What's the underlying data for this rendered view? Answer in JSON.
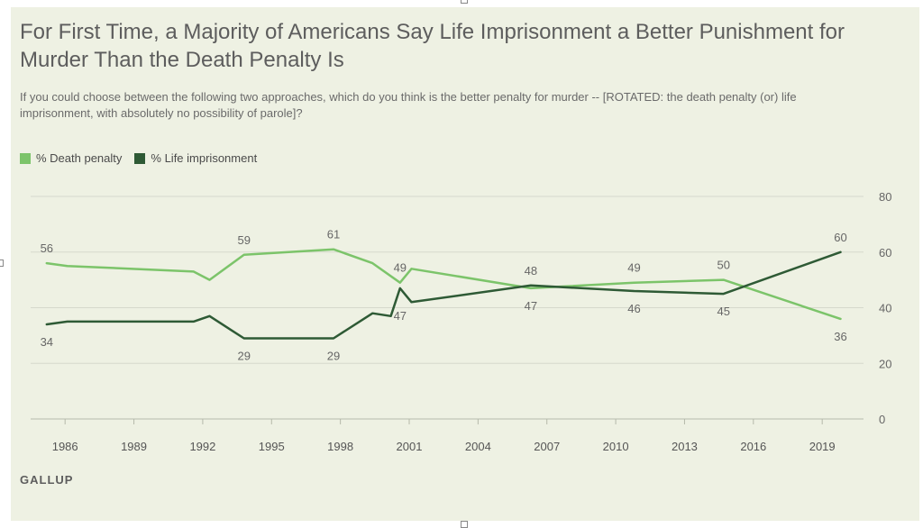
{
  "header": {
    "title": "For First Time, a Majority of Americans Say Life Imprisonment a Better Punishment for Murder Than the Death Penalty Is",
    "subtitle": "If you could choose between the following two approaches, which do you think is the better penalty for murder -- [ROTATED: the death penalty (or) life imprisonment, with absolutely no possibility of parole]?"
  },
  "footer": {
    "brand": "GALLUP"
  },
  "colors": {
    "panel": "#eef1e3",
    "death_penalty": "#7cc46a",
    "life_imprisonment": "#2e5a35"
  },
  "chart_data": {
    "type": "line",
    "title": "",
    "xlabel": "",
    "ylabel": "",
    "xlim": [
      1984.5,
      2020.8
    ],
    "ylim": [
      0,
      80
    ],
    "xticks": [
      "1986",
      "1989",
      "1992",
      "1995",
      "1998",
      "2001",
      "2004",
      "2007",
      "2010",
      "2013",
      "2016",
      "2019"
    ],
    "yticks": [
      "0",
      "20",
      "40",
      "60",
      "80"
    ],
    "grid": true,
    "legend_position": "top-left",
    "series": [
      {
        "name": "% Death penalty",
        "color": "#7cc46a",
        "points": [
          {
            "x": 1985.2,
            "y": 56
          },
          {
            "x": 1986.1,
            "y": 55
          },
          {
            "x": 1991.6,
            "y": 53
          },
          {
            "x": 1992.3,
            "y": 50
          },
          {
            "x": 1993.8,
            "y": 59
          },
          {
            "x": 1997.7,
            "y": 61
          },
          {
            "x": 1999.4,
            "y": 56
          },
          {
            "x": 2000.6,
            "y": 49
          },
          {
            "x": 2001.1,
            "y": 54
          },
          {
            "x": 2006.3,
            "y": 47
          },
          {
            "x": 2010.8,
            "y": 49
          },
          {
            "x": 2014.7,
            "y": 50
          },
          {
            "x": 2019.8,
            "y": 36
          }
        ]
      },
      {
        "name": "% Life imprisonment",
        "color": "#2e5a35",
        "points": [
          {
            "x": 1985.2,
            "y": 34
          },
          {
            "x": 1986.1,
            "y": 35
          },
          {
            "x": 1991.6,
            "y": 35
          },
          {
            "x": 1992.3,
            "y": 37
          },
          {
            "x": 1993.8,
            "y": 29
          },
          {
            "x": 1997.7,
            "y": 29
          },
          {
            "x": 1999.4,
            "y": 38
          },
          {
            "x": 2000.2,
            "y": 37
          },
          {
            "x": 2000.6,
            "y": 47
          },
          {
            "x": 2001.1,
            "y": 42
          },
          {
            "x": 2006.3,
            "y": 48
          },
          {
            "x": 2010.8,
            "y": 46
          },
          {
            "x": 2014.7,
            "y": 45
          },
          {
            "x": 2019.8,
            "y": 60
          }
        ]
      }
    ],
    "data_labels": [
      {
        "text": "56",
        "x": 1985.2,
        "y": 56,
        "pos": "above"
      },
      {
        "text": "34",
        "x": 1985.2,
        "y": 34,
        "pos": "below"
      },
      {
        "text": "59",
        "x": 1993.8,
        "y": 59,
        "pos": "above"
      },
      {
        "text": "29",
        "x": 1993.8,
        "y": 29,
        "pos": "below"
      },
      {
        "text": "61",
        "x": 1997.7,
        "y": 61,
        "pos": "above"
      },
      {
        "text": "29",
        "x": 1997.7,
        "y": 29,
        "pos": "below"
      },
      {
        "text": "49",
        "x": 2000.6,
        "y": 49,
        "pos": "above"
      },
      {
        "text": "47",
        "x": 2000.6,
        "y": 47,
        "pos": "below-far"
      },
      {
        "text": "48",
        "x": 2006.3,
        "y": 48,
        "pos": "above"
      },
      {
        "text": "47",
        "x": 2006.3,
        "y": 47,
        "pos": "below"
      },
      {
        "text": "49",
        "x": 2010.8,
        "y": 49,
        "pos": "above"
      },
      {
        "text": "46",
        "x": 2010.8,
        "y": 46,
        "pos": "below"
      },
      {
        "text": "50",
        "x": 2014.7,
        "y": 50,
        "pos": "above"
      },
      {
        "text": "45",
        "x": 2014.7,
        "y": 45,
        "pos": "below"
      },
      {
        "text": "60",
        "x": 2019.8,
        "y": 60,
        "pos": "above"
      },
      {
        "text": "36",
        "x": 2019.8,
        "y": 36,
        "pos": "below"
      }
    ]
  }
}
